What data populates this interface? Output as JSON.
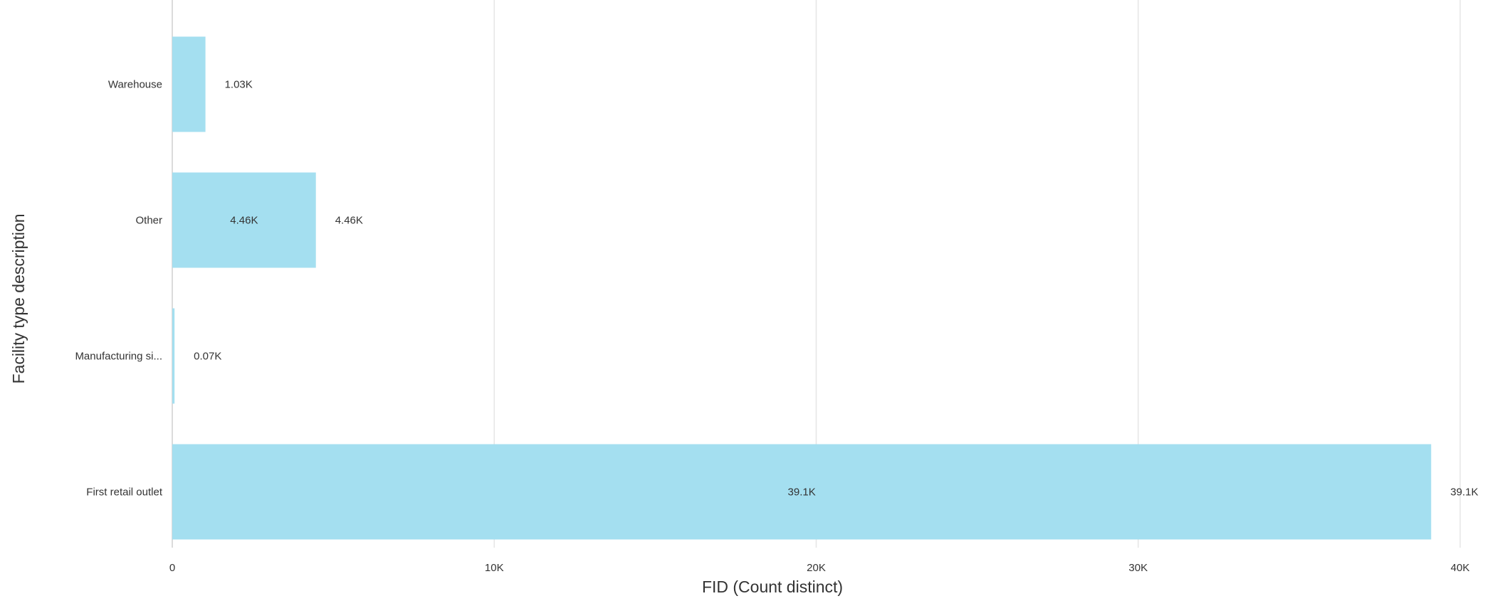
{
  "chart_data": {
    "type": "bar",
    "orientation": "horizontal",
    "title": "",
    "xlabel": "FID (Count distinct)",
    "ylabel": "Facility type description",
    "categories": [
      "Warehouse",
      "Other",
      "Manufacturing si...",
      "First retail outlet"
    ],
    "values": [
      1030,
      4460,
      70,
      39100
    ],
    "data_labels_end": [
      "1.03K",
      "4.46K",
      "0.07K",
      "39.1K"
    ],
    "data_labels_inside": [
      "",
      "4.46K",
      "",
      "39.1K"
    ],
    "xlim": [
      0,
      40000
    ],
    "x_ticks": [
      0,
      10000,
      20000,
      30000,
      40000
    ],
    "x_tick_labels": [
      "0",
      "10K",
      "20K",
      "30K",
      "40K"
    ],
    "grid": true,
    "legend": "none",
    "bar_color": "#a4dff0"
  }
}
